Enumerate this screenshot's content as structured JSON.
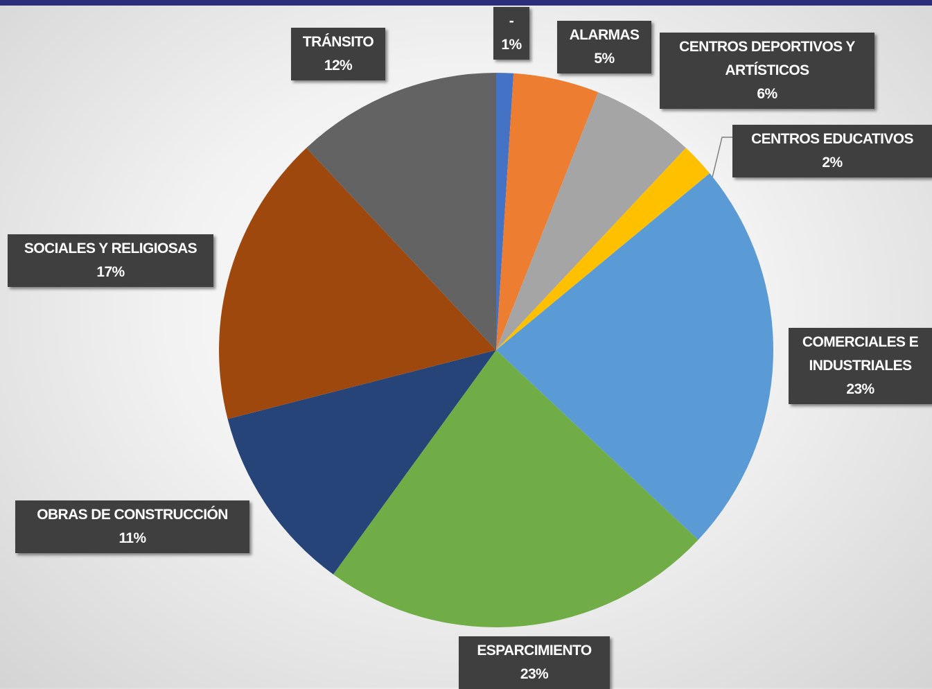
{
  "chart_data": {
    "type": "pie",
    "categories": [
      "-",
      "ALARMAS",
      "CENTROS DEPORTIVOS Y ARTÍSTICOS",
      "CENTROS EDUCATIVOS",
      "COMERCIALES E INDUSTRIALES",
      "ESPARCIMIENTO",
      "OBRAS DE CONSTRUCCIÓN",
      "SOCIALES Y RELIGIOSAS",
      "TRÁNSITO"
    ],
    "values": [
      1,
      5,
      6,
      2,
      23,
      23,
      11,
      17,
      12
    ],
    "value_labels": [
      "1%",
      "5%",
      "6%",
      "2%",
      "23%",
      "23%",
      "11%",
      "17%",
      "12%"
    ],
    "colors": [
      "#4472c4",
      "#ed7d31",
      "#a5a5a5",
      "#ffc000",
      "#5b9bd5",
      "#70ad47",
      "#264478",
      "#9e480e",
      "#636363"
    ]
  }
}
